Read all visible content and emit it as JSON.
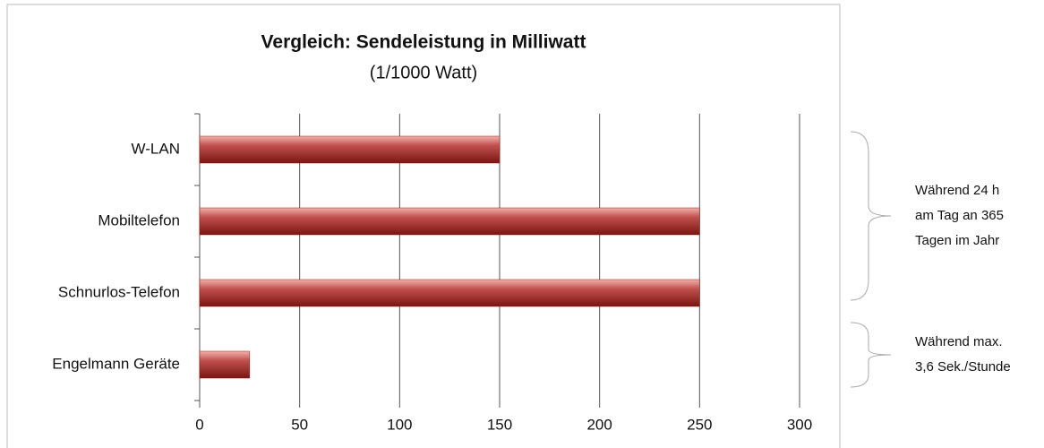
{
  "chart_data": {
    "type": "barh",
    "title": "Vergleich: Sendeleistung in Milliwatt",
    "subtitle": "(1/1000 Watt)",
    "categories": [
      "W-LAN",
      "Mobiltelefon",
      "Schnurlos-Telefon",
      "Engelmann Geräte"
    ],
    "values": [
      150,
      250,
      250,
      25
    ],
    "color": "#c0504d",
    "xlim": [
      0,
      300
    ],
    "xticks": [
      0,
      50,
      100,
      150,
      200,
      250,
      300
    ],
    "grid": true,
    "annotations": [
      {
        "lines": [
          "Während 24 h",
          "am Tag an 365",
          "Tagen im Jahr"
        ]
      },
      {
        "lines": [
          "Während max.",
          "3,6 Sek./Stunde"
        ]
      }
    ]
  }
}
